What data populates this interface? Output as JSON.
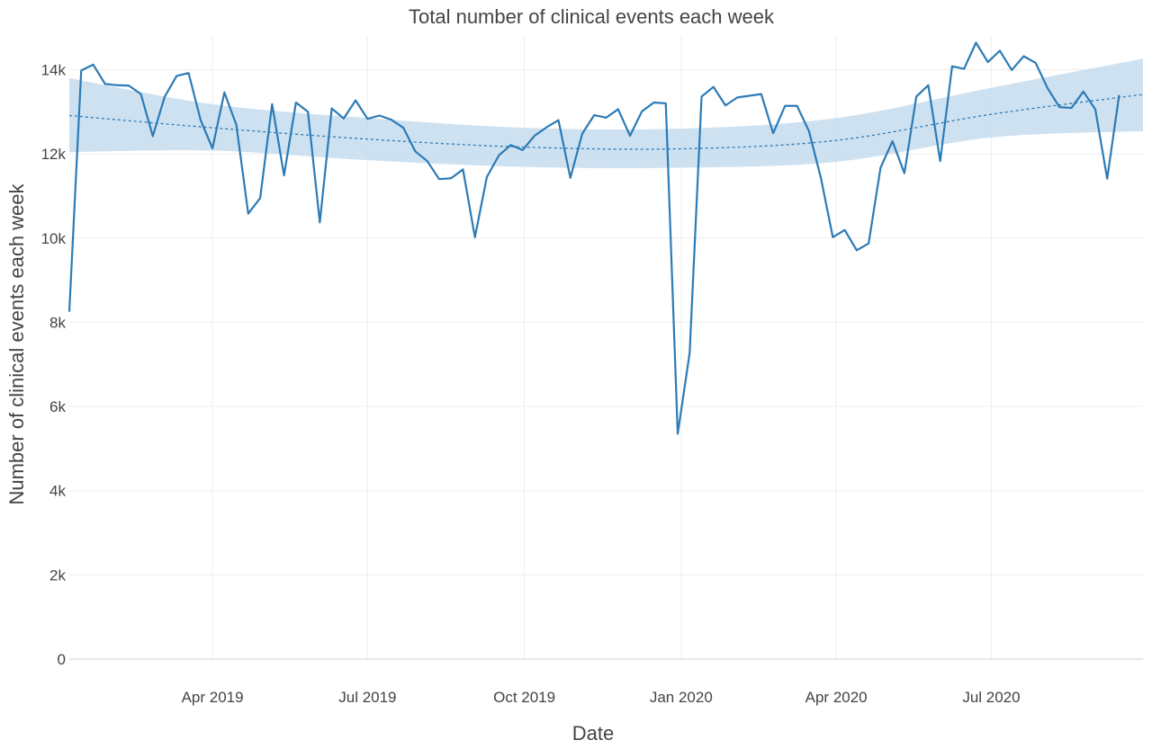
{
  "chart_data": {
    "type": "line",
    "title": "Total number of clinical events each week",
    "xlabel": "Date",
    "ylabel": "Number of clinical events each week",
    "x_ticks": [
      {
        "date": "2019-04-01",
        "label": "Apr 2019"
      },
      {
        "date": "2019-07-01",
        "label": "Jul 2019"
      },
      {
        "date": "2019-10-01",
        "label": "Oct 2019"
      },
      {
        "date": "2020-01-01",
        "label": "Jan 2020"
      },
      {
        "date": "2020-04-01",
        "label": "Apr 2020"
      },
      {
        "date": "2020-07-01",
        "label": "Jul 2020"
      }
    ],
    "y_ticks": [
      {
        "value": 0,
        "label": "0"
      },
      {
        "value": 2000,
        "label": "2k"
      },
      {
        "value": 4000,
        "label": "4k"
      },
      {
        "value": 6000,
        "label": "6k"
      },
      {
        "value": 8000,
        "label": "8k"
      },
      {
        "value": 10000,
        "label": "10k"
      },
      {
        "value": 12000,
        "label": "12k"
      },
      {
        "value": 14000,
        "label": "14k"
      }
    ],
    "xlim": [
      "2019-01-07",
      "2020-09-28"
    ],
    "ylim": [
      0,
      14800
    ],
    "grid": true,
    "colors": {
      "line": "#2c7bb6",
      "trend": "#2c7bb6",
      "band": "#c6dcef",
      "grid": "#eeeeee",
      "text": "#444444"
    },
    "series": [
      {
        "kind": "observed",
        "x_start": "2019-01-07",
        "step_days": 7,
        "values": [
          8250,
          13980,
          14120,
          13660,
          13630,
          13620,
          13420,
          12420,
          13360,
          13850,
          13920,
          12810,
          12130,
          13460,
          12690,
          10580,
          10950,
          13180,
          11490,
          13220,
          13000,
          10370,
          13080,
          12840,
          13270,
          12830,
          12910,
          12810,
          12620,
          12060,
          11830,
          11400,
          11420,
          11630,
          10020,
          11450,
          11960,
          12210,
          12090,
          12430,
          12630,
          12800,
          11430,
          12480,
          12920,
          12860,
          13060,
          12430,
          13010,
          13220,
          13200,
          5350,
          7270,
          13360,
          13590,
          13150,
          13340,
          13380,
          13420,
          12490,
          13140,
          13140,
          12540,
          11430,
          10020,
          10190,
          9710,
          9870,
          11670,
          12300,
          11540,
          13360,
          13630,
          11830,
          14080,
          14020,
          14640,
          14180,
          14450,
          13990,
          14320,
          14160,
          13560,
          13110,
          13090,
          13480,
          13060,
          11410,
          13400
        ]
      },
      {
        "kind": "trend",
        "x": [
          "2019-01-07",
          "2019-04-01",
          "2019-07-01",
          "2019-10-01",
          "2020-01-01",
          "2020-04-01",
          "2020-07-01",
          "2020-09-28"
        ],
        "values": [
          12910,
          12620,
          12350,
          12160,
          12120,
          12320,
          12940,
          13410
        ],
        "band_upper": [
          13800,
          13180,
          12850,
          12620,
          12600,
          12850,
          13570,
          14260
        ],
        "band_lower": [
          12040,
          12080,
          11850,
          11690,
          11670,
          11810,
          12390,
          12540
        ]
      }
    ]
  }
}
